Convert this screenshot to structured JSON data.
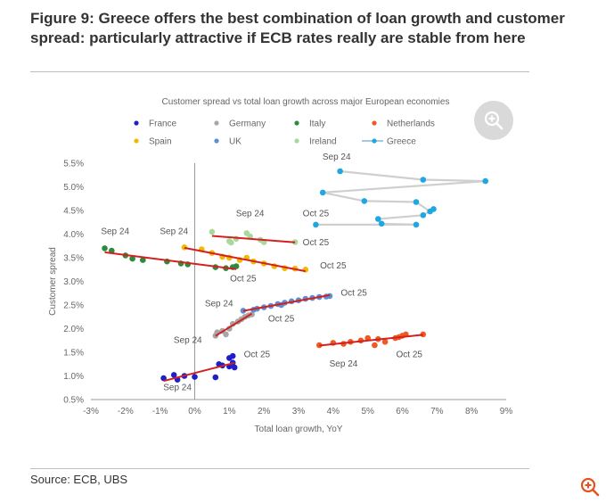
{
  "figure": {
    "title": "Figure 9: Greece offers the best combination of loan growth and customer spread: particularly attractive if ECB rates really are stable from here",
    "source": "Source: ECB, UBS"
  },
  "icons": {
    "zoom_main": "zoom-in-icon",
    "zoom_corner": "zoom-in-icon"
  },
  "colors": {
    "france": "#1f1fc8",
    "germany": "#a6a6a6",
    "italy": "#2e8b3e",
    "netherlands": "#ee5a24",
    "spain": "#f5b800",
    "uk": "#5b8fd6",
    "ireland": "#a8d89a",
    "greece": "#1ea7e1",
    "trend": "#d32020",
    "greece_line": "#cfcfcf",
    "axis": "#999999",
    "text": "#666666",
    "accent": "#e2541f"
  },
  "chart_data": {
    "type": "scatter",
    "title": "Customer spread vs total loan growth across major European economies",
    "xlabel": "Total loan growth, YoY",
    "ylabel": "Customer spread",
    "xlim": [
      -3,
      9
    ],
    "ylim": [
      0.5,
      5.5
    ],
    "x_ticks": [
      "-3%",
      "-2%",
      "-1%",
      "0%",
      "1%",
      "2%",
      "3%",
      "4%",
      "5%",
      "6%",
      "7%",
      "8%",
      "9%"
    ],
    "y_ticks": [
      "0.5%",
      "1.0%",
      "1.5%",
      "2.0%",
      "2.5%",
      "3.0%",
      "3.5%",
      "4.0%",
      "4.5%",
      "5.0%",
      "5.5%"
    ],
    "legend": [
      "France",
      "Germany",
      "Italy",
      "Netherlands",
      "Spain",
      "UK",
      "Ireland",
      "Greece"
    ],
    "series": [
      {
        "name": "France",
        "color_key": "france",
        "trend": true,
        "points": [
          [
            -0.9,
            0.95
          ],
          [
            -0.6,
            1.02
          ],
          [
            -0.3,
            1.0
          ],
          [
            0.0,
            0.98
          ],
          [
            -0.5,
            0.92
          ],
          [
            0.6,
            0.97
          ],
          [
            0.8,
            1.22
          ],
          [
            1.0,
            1.2
          ],
          [
            1.1,
            1.28
          ],
          [
            1.0,
            1.38
          ],
          [
            1.1,
            1.42
          ],
          [
            1.15,
            1.18
          ],
          [
            0.7,
            1.25
          ]
        ]
      },
      {
        "name": "Germany",
        "color_key": "germany",
        "trend": true,
        "points": [
          [
            0.6,
            1.85
          ],
          [
            0.65,
            1.92
          ],
          [
            0.8,
            1.95
          ],
          [
            1.0,
            2.0
          ],
          [
            1.1,
            2.1
          ],
          [
            1.25,
            2.15
          ],
          [
            1.35,
            2.2
          ],
          [
            1.45,
            2.25
          ],
          [
            1.55,
            2.28
          ],
          [
            1.65,
            2.3
          ],
          [
            0.9,
            1.88
          ]
        ]
      },
      {
        "name": "Italy",
        "color_key": "italy",
        "trend": true,
        "points": [
          [
            -2.6,
            3.7
          ],
          [
            -2.4,
            3.65
          ],
          [
            -2.0,
            3.55
          ],
          [
            -1.8,
            3.48
          ],
          [
            -1.5,
            3.45
          ],
          [
            -0.8,
            3.42
          ],
          [
            -0.4,
            3.38
          ],
          [
            -0.2,
            3.36
          ],
          [
            0.6,
            3.3
          ],
          [
            0.9,
            3.28
          ],
          [
            1.1,
            3.3
          ],
          [
            1.2,
            3.32
          ]
        ]
      },
      {
        "name": "Netherlands",
        "color_key": "netherlands",
        "trend": true,
        "points": [
          [
            3.6,
            1.65
          ],
          [
            4.0,
            1.7
          ],
          [
            4.3,
            1.68
          ],
          [
            4.5,
            1.72
          ],
          [
            4.8,
            1.75
          ],
          [
            5.0,
            1.8
          ],
          [
            5.3,
            1.78
          ],
          [
            5.5,
            1.72
          ],
          [
            5.8,
            1.8
          ],
          [
            6.0,
            1.85
          ],
          [
            6.1,
            1.88
          ],
          [
            5.9,
            1.82
          ],
          [
            6.6,
            1.88
          ],
          [
            5.2,
            1.65
          ]
        ]
      },
      {
        "name": "Spain",
        "color_key": "spain",
        "trend": true,
        "points": [
          [
            -0.3,
            3.72
          ],
          [
            0.2,
            3.68
          ],
          [
            0.5,
            3.6
          ],
          [
            0.8,
            3.52
          ],
          [
            1.0,
            3.5
          ],
          [
            1.3,
            3.45
          ],
          [
            1.7,
            3.42
          ],
          [
            2.0,
            3.38
          ],
          [
            2.3,
            3.32
          ],
          [
            2.6,
            3.28
          ],
          [
            2.9,
            3.27
          ],
          [
            3.2,
            3.25
          ],
          [
            1.5,
            3.5
          ]
        ]
      },
      {
        "name": "UK",
        "color_key": "uk",
        "trend": true,
        "points": [
          [
            1.4,
            2.38
          ],
          [
            1.7,
            2.4
          ],
          [
            2.0,
            2.45
          ],
          [
            2.2,
            2.48
          ],
          [
            2.4,
            2.52
          ],
          [
            2.6,
            2.55
          ],
          [
            2.8,
            2.58
          ],
          [
            3.0,
            2.6
          ],
          [
            3.2,
            2.63
          ],
          [
            3.4,
            2.65
          ],
          [
            3.6,
            2.67
          ],
          [
            3.8,
            2.68
          ],
          [
            3.9,
            2.69
          ],
          [
            1.8,
            2.42
          ],
          [
            2.5,
            2.5
          ]
        ]
      },
      {
        "name": "Ireland",
        "color_key": "ireland",
        "trend": true,
        "points": [
          [
            0.5,
            4.05
          ],
          [
            1.0,
            3.85
          ],
          [
            1.2,
            3.9
          ],
          [
            1.6,
            3.95
          ],
          [
            1.9,
            3.88
          ],
          [
            2.0,
            3.83
          ],
          [
            1.5,
            4.02
          ],
          [
            2.9,
            3.83
          ],
          [
            1.05,
            3.82
          ]
        ]
      },
      {
        "name": "Greece",
        "color_key": "greece",
        "trend": false,
        "connected": true,
        "points": [
          [
            4.2,
            5.33
          ],
          [
            6.6,
            5.15
          ],
          [
            8.4,
            5.12
          ],
          [
            3.7,
            4.88
          ],
          [
            4.9,
            4.7
          ],
          [
            6.4,
            4.68
          ],
          [
            6.8,
            4.48
          ],
          [
            6.9,
            4.53
          ],
          [
            6.6,
            4.4
          ],
          [
            5.3,
            4.32
          ],
          [
            5.4,
            4.22
          ],
          [
            6.4,
            4.2
          ],
          [
            3.5,
            4.2
          ]
        ]
      }
    ],
    "annotations": [
      {
        "text": "Sep 24",
        "x": 4.1,
        "y": 5.58
      },
      {
        "text": "Sep 24",
        "x": 1.6,
        "y": 4.38
      },
      {
        "text": "Oct 25",
        "x": 3.5,
        "y": 4.38
      },
      {
        "text": "Oct 25",
        "x": 3.5,
        "y": 3.76
      },
      {
        "text": "Sep 24",
        "x": -2.3,
        "y": 4.0
      },
      {
        "text": "Sep 24",
        "x": -0.6,
        "y": 4.0
      },
      {
        "text": "Oct 25",
        "x": 4.0,
        "y": 3.27
      },
      {
        "text": "Oct 25",
        "x": 1.4,
        "y": 3.0
      },
      {
        "text": "Oct 25",
        "x": 4.6,
        "y": 2.7
      },
      {
        "text": "Sep 24",
        "x": 0.7,
        "y": 2.47
      },
      {
        "text": "Oct 25",
        "x": 2.5,
        "y": 2.15
      },
      {
        "text": "Sep 24",
        "x": -0.2,
        "y": 1.7
      },
      {
        "text": "Oct 25",
        "x": 1.8,
        "y": 1.4
      },
      {
        "text": "Sep 24",
        "x": 4.3,
        "y": 1.2
      },
      {
        "text": "Oct 25",
        "x": 6.2,
        "y": 1.4
      },
      {
        "text": "Sep 24",
        "x": -0.5,
        "y": 0.7
      }
    ]
  }
}
